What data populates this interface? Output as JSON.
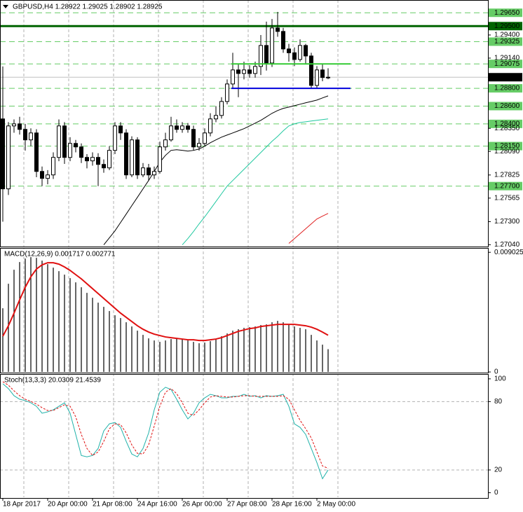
{
  "chart_data": [
    {
      "type": "candlestick",
      "title": "GBPUSD,H4 1.28922 1.29025 1.28902 1.28925",
      "categories": [
        "18 Apr 2017",
        null,
        null,
        null,
        null,
        null,
        null,
        null,
        "20 Apr 00:00",
        null,
        null,
        null,
        null,
        null,
        null,
        null,
        "21 Apr 08:00",
        null,
        null,
        null,
        null,
        null,
        null,
        null,
        "24 Apr 16:00",
        null,
        null,
        null,
        null,
        null,
        null,
        null,
        "26 Apr 00:00",
        null,
        null,
        null,
        null,
        null,
        null,
        null,
        "27 Apr 08:00",
        null,
        null,
        null,
        null,
        null,
        null,
        null,
        "28 Apr 16:00",
        null,
        null,
        null,
        null,
        null,
        null,
        null,
        "2 May 00:00",
        null,
        null
      ],
      "open": [
        1.28456,
        1.27669,
        1.28377,
        1.284,
        1.28338,
        1.2822,
        1.28298,
        1.27865,
        1.27787,
        1.27826,
        1.28023,
        1.28377,
        1.28023,
        1.2818,
        1.28141,
        1.28023,
        1.27984,
        1.28023,
        1.27944,
        1.27905,
        1.28102,
        1.28377,
        1.28298,
        1.27826,
        1.2822,
        1.27826,
        1.27905,
        1.27826,
        1.27865,
        1.28141,
        1.2822,
        1.28377,
        1.28338,
        1.28377,
        1.28338,
        1.28141,
        1.2818,
        1.28298,
        1.28456,
        1.28495,
        1.28652,
        1.28849,
        1.29007,
        1.28967,
        1.29007,
        1.28967,
        1.29046,
        1.29282,
        1.29085,
        1.29479,
        1.2944,
        1.29243,
        1.292,
        1.29125,
        1.29282,
        1.29164,
        1.28833,
        1.29007,
        1.28922
      ],
      "high": [
        1.29046,
        1.2842,
        1.2845,
        1.2848,
        1.284,
        1.2835,
        1.2834,
        1.2792,
        1.2788,
        1.2808,
        1.2845,
        1.2842,
        1.2825,
        1.2822,
        1.2818,
        1.2806,
        1.2808,
        1.2807,
        1.28,
        1.2815,
        1.2842,
        1.2842,
        1.2834,
        1.2826,
        1.2825,
        1.2796,
        1.2795,
        1.2792,
        1.282,
        1.283,
        1.2848,
        1.2845,
        1.2842,
        1.2841,
        1.2838,
        1.2824,
        1.2835,
        1.2852,
        1.286,
        1.287,
        1.289,
        1.292,
        1.2908,
        1.291,
        1.2906,
        1.291,
        1.294,
        1.2955,
        1.2958,
        1.2966,
        1.2948,
        1.293,
        1.2926,
        1.2935,
        1.293,
        1.292,
        1.2905,
        1.2908,
        1.29025
      ],
      "low": [
        1.273,
        1.276,
        1.283,
        1.2828,
        1.281,
        1.2815,
        1.278,
        1.277,
        1.2772,
        1.2778,
        1.2798,
        1.2795,
        1.2798,
        1.2808,
        1.2796,
        1.279,
        1.2793,
        1.277,
        1.2785,
        1.2788,
        1.2806,
        1.2822,
        1.2778,
        1.278,
        1.2778,
        1.278,
        1.2776,
        1.2778,
        1.2784,
        1.281,
        1.282,
        1.283,
        1.283,
        1.283,
        1.281,
        1.281,
        1.2815,
        1.2826,
        1.2842,
        1.2846,
        1.2862,
        1.288,
        1.287,
        1.289,
        1.2892,
        1.2892,
        1.2895,
        1.29,
        1.2904,
        1.2938,
        1.292,
        1.291,
        1.2905,
        1.291,
        1.2908,
        1.288,
        1.288,
        1.2888,
        1.28902
      ],
      "close": [
        1.27669,
        1.28377,
        1.284,
        1.28338,
        1.2822,
        1.28298,
        1.27865,
        1.27787,
        1.27826,
        1.28023,
        1.28377,
        1.28023,
        1.2818,
        1.28141,
        1.28023,
        1.27984,
        1.28023,
        1.27944,
        1.27905,
        1.28102,
        1.28377,
        1.28298,
        1.27826,
        1.2822,
        1.27826,
        1.27905,
        1.27826,
        1.27865,
        1.28141,
        1.2822,
        1.28377,
        1.28338,
        1.28377,
        1.28338,
        1.28141,
        1.2818,
        1.28298,
        1.28456,
        1.28495,
        1.28652,
        1.28849,
        1.29007,
        1.28967,
        1.29007,
        1.28967,
        1.29046,
        1.29282,
        1.29085,
        1.29479,
        1.2944,
        1.29243,
        1.292,
        1.29125,
        1.29282,
        1.29164,
        1.28833,
        1.29007,
        1.28922,
        1.28925
      ],
      "up_color": "#ffffff",
      "down_color": "#000000",
      "ylim": [
        1.2702,
        1.2977
      ],
      "yticks": [
        {
          "value": 1.294,
          "label": "1.29400"
        },
        {
          "value": 1.2914,
          "label": "1.29140"
        },
        {
          "value": 1.2835,
          "label": "1.28350"
        },
        {
          "value": 1.2809,
          "label": "1.28090"
        },
        {
          "value": 1.27825,
          "label": "1.27825"
        },
        {
          "value": 1.27565,
          "label": "1.27565"
        },
        {
          "value": 1.273,
          "label": "1.27300"
        },
        {
          "value": 1.2704,
          "label": "1.27040"
        }
      ],
      "grid": true,
      "moving_averages": [
        {
          "color": "#000000",
          "values": [
            null,
            null,
            null,
            null,
            null,
            null,
            null,
            null,
            null,
            null,
            null,
            null,
            null,
            null,
            null,
            null,
            null,
            null,
            1.27039,
            1.27118,
            1.27197,
            1.27291,
            1.27385,
            1.2748,
            1.27574,
            1.27669,
            1.27763,
            1.27865,
            1.27968,
            1.28046,
            1.28102,
            1.28109,
            1.28102,
            1.28094,
            1.28102,
            1.28117,
            1.28149,
            1.28188,
            1.2822,
            1.28251,
            1.28275,
            1.28298,
            1.28322,
            1.28346,
            1.28377,
            1.28408,
            1.2844,
            1.28479,
            1.28519,
            1.2855,
            1.28574,
            1.28589,
            1.28605,
            1.28621,
            1.28637,
            1.28652,
            1.28668,
            1.28692,
            1.28715
          ]
        },
        {
          "color": "#20c8a0",
          "values": [
            null,
            null,
            null,
            null,
            null,
            null,
            null,
            null,
            null,
            null,
            null,
            null,
            null,
            null,
            null,
            null,
            null,
            null,
            null,
            null,
            null,
            null,
            null,
            null,
            null,
            null,
            null,
            null,
            null,
            null,
            null,
            null,
            1.27039,
            1.2711,
            1.27189,
            1.27275,
            1.27354,
            1.2744,
            1.27527,
            1.27614,
            1.277,
            1.27763,
            1.27826,
            1.27889,
            1.27952,
            1.28015,
            1.28078,
            1.28141,
            1.28204,
            1.28259,
            1.28322,
            1.28377,
            1.28401,
            1.28416,
            1.28424,
            1.28432,
            1.2844,
            1.28448,
            1.28456
          ]
        },
        {
          "color": "#e02020",
          "values": [
            null,
            null,
            null,
            null,
            null,
            null,
            null,
            null,
            null,
            null,
            null,
            null,
            null,
            null,
            null,
            null,
            null,
            null,
            null,
            null,
            null,
            null,
            null,
            null,
            null,
            null,
            null,
            null,
            null,
            null,
            null,
            null,
            null,
            null,
            null,
            null,
            null,
            null,
            null,
            null,
            null,
            null,
            null,
            null,
            null,
            null,
            null,
            null,
            null,
            null,
            null,
            1.27055,
            1.2711,
            1.27165,
            1.2722,
            1.27275,
            1.2733,
            1.27362,
            1.27393
          ]
        }
      ],
      "levels": [
        {
          "value": 1.2965,
          "label": "1.29650"
        },
        {
          "value": 1.29325,
          "label": "1.29325"
        },
        {
          "value": 1.29075,
          "label": "1.29075"
        },
        {
          "value": 1.288,
          "label": "1.28800"
        },
        {
          "value": 1.286,
          "label": "1.28600"
        },
        {
          "value": 1.284,
          "label": "1.28400"
        },
        {
          "value": 1.2815,
          "label": "1.28150"
        },
        {
          "value": 1.277,
          "label": "1.27700"
        }
      ],
      "level_color": "#66cc66",
      "resistance": {
        "value": 1.295,
        "label": "1.29500",
        "color": "#006400"
      },
      "segments": [
        {
          "value": 1.29075,
          "color": "#33cc33"
        },
        {
          "value": 1.288,
          "color": "#0000dd"
        }
      ],
      "last_price": {
        "value": 1.28925,
        "label": "1.28925"
      }
    },
    {
      "type": "macd",
      "title": "MACD(12,26,9) 0.001717 0.002771",
      "ylim": [
        -5e-05,
        0.0093
      ],
      "yticks": [
        0,
        0.009025
      ],
      "series": [
        {
          "color": "#000000",
          "values": [
            0.004805,
            0.006653,
            0.007709,
            0.00829,
            0.008554,
            0.008659,
            0.008606,
            0.008395,
            0.008131,
            0.007867,
            0.007603,
            0.007339,
            0.007075,
            0.006758,
            0.006389,
            0.005966,
            0.005597,
            0.005227,
            0.00491,
            0.004594,
            0.004277,
            0.004066,
            0.003749,
            0.003432,
            0.003115,
            0.002798,
            0.002534,
            0.002376,
            0.00227,
            0.002376,
            0.002482,
            0.002534,
            0.002482,
            0.002376,
            0.00227,
            0.002165,
            0.002218,
            0.002323,
            0.002482,
            0.002693,
            0.002904,
            0.003115,
            0.003221,
            0.003326,
            0.003379,
            0.003432,
            0.003538,
            0.00359,
            0.003749,
            0.003854,
            0.003749,
            0.00359,
            0.003432,
            0.003326,
            0.003221,
            0.002798,
            0.002376,
            0.002059,
            0.001717
          ]
        },
        {
          "color": "#e01010",
          "values": [
            0.002693,
            0.003485,
            0.004435,
            0.005438,
            0.006389,
            0.007181,
            0.007762,
            0.008078,
            0.008237,
            0.008237,
            0.008131,
            0.00792,
            0.007656,
            0.007339,
            0.007022,
            0.006653,
            0.006283,
            0.005914,
            0.005544,
            0.005174,
            0.004805,
            0.004435,
            0.004118,
            0.003802,
            0.003485,
            0.003221,
            0.00301,
            0.002851,
            0.002746,
            0.00264,
            0.002587,
            0.002534,
            0.002482,
            0.002429,
            0.002429,
            0.002376,
            0.002376,
            0.002429,
            0.002482,
            0.002587,
            0.002746,
            0.002904,
            0.003062,
            0.003168,
            0.003274,
            0.003326,
            0.003432,
            0.003485,
            0.003538,
            0.00359,
            0.00359,
            0.00359,
            0.00359,
            0.003538,
            0.003485,
            0.003379,
            0.003221,
            0.00301,
            0.002771
          ]
        }
      ]
    },
    {
      "type": "stochastic",
      "title": "Stoch(13,3,3) 20.0309 21.4539",
      "ylim": [
        -4,
        103
      ],
      "yticks": [
        0,
        20,
        80,
        100
      ],
      "levels": [
        20,
        80
      ],
      "series": [
        {
          "color": "#20b2aa",
          "values": [
            95.7,
            91.4,
            85.2,
            82.1,
            80.9,
            79.0,
            75.9,
            69.8,
            71.0,
            72.8,
            75.9,
            79.0,
            69.8,
            51.2,
            32.7,
            31.5,
            32.7,
            38.9,
            54.3,
            60.5,
            61.7,
            57.4,
            45.1,
            34.0,
            31.5,
            38.9,
            52.5,
            72.8,
            88.3,
            92.6,
            90.7,
            82.1,
            72.8,
            64.8,
            69.8,
            79.0,
            83.3,
            86.4,
            85.2,
            83.3,
            83.3,
            84.6,
            84.6,
            86.4,
            84.6,
            85.2,
            83.3,
            85.2,
            84.6,
            85.2,
            86.4,
            75.9,
            60.5,
            57.4,
            51.2,
            38.9,
            26.5,
            12.3,
            20.0309
          ]
        },
        {
          "color": "#e01010",
          "dashed": true,
          "values": [
            97.5,
            94.4,
            89.5,
            85.2,
            82.1,
            80.2,
            77.8,
            74.7,
            72.2,
            72.2,
            74.7,
            77.2,
            75.9,
            66.7,
            51.2,
            38.9,
            32.7,
            35.8,
            45.1,
            56.2,
            60.5,
            59.9,
            52.5,
            42.0,
            34.6,
            34.0,
            42.0,
            58.6,
            75.9,
            88.3,
            91.4,
            87.0,
            79.0,
            69.8,
            67.9,
            72.8,
            79.0,
            84.0,
            85.2,
            84.6,
            84.0,
            84.0,
            84.6,
            85.2,
            85.2,
            84.6,
            84.6,
            84.6,
            84.6,
            84.6,
            85.2,
            82.1,
            72.8,
            63.6,
            56.2,
            48.1,
            35.8,
            23.5,
            21.4539
          ]
        }
      ]
    }
  ]
}
